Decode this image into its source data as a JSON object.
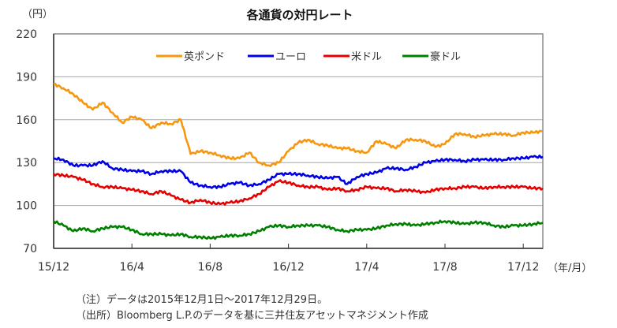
{
  "chart_data": {
    "type": "line",
    "title": "各通貨の対円レート",
    "ylabel": "（円）",
    "xlabel": "（年/月）",
    "ylim": [
      70,
      220
    ],
    "yticks": [
      70,
      100,
      130,
      160,
      190,
      220
    ],
    "x_unit": "months since 2015/12/01",
    "xlim": [
      0,
      25
    ],
    "xticks": [
      {
        "x": 0,
        "label": "15/12"
      },
      {
        "x": 4,
        "label": "16/4"
      },
      {
        "x": 8,
        "label": "16/8"
      },
      {
        "x": 12,
        "label": "16/12"
      },
      {
        "x": 16,
        "label": "17/4"
      },
      {
        "x": 20,
        "label": "17/8"
      },
      {
        "x": 24,
        "label": "17/12"
      }
    ],
    "grid": true,
    "legend": "top-center",
    "x": [
      0,
      0.5,
      1,
      1.5,
      2,
      2.5,
      3,
      3.5,
      4,
      4.5,
      5,
      5.5,
      6,
      6.5,
      7,
      7.5,
      8,
      8.5,
      9,
      9.5,
      10,
      10.5,
      11,
      11.5,
      12,
      12.5,
      13,
      13.5,
      14,
      14.5,
      15,
      15.5,
      16,
      16.5,
      17,
      17.5,
      18,
      18.5,
      19,
      19.5,
      20,
      20.5,
      21,
      21.5,
      22,
      22.5,
      23,
      23.5,
      24,
      24.5,
      25
    ],
    "series": [
      {
        "name": "英ポンド",
        "color": "#f7960f",
        "values": [
          185,
          182,
          178,
          172,
          167,
          172,
          165,
          158,
          162,
          160,
          154,
          158,
          157,
          160,
          136,
          138,
          137,
          135,
          133,
          133,
          137,
          130,
          128,
          130,
          138,
          144,
          146,
          143,
          142,
          140,
          140,
          138,
          137,
          145,
          143,
          140,
          146,
          146,
          145,
          141,
          143,
          150,
          150,
          148,
          149,
          150,
          150,
          149,
          151,
          151,
          152
        ]
      },
      {
        "name": "ユーロ",
        "color": "#0000e6",
        "values": [
          133,
          132,
          128,
          128,
          128,
          131,
          126,
          125,
          124,
          124,
          122,
          124,
          124,
          124,
          116,
          114,
          113,
          113,
          115,
          116,
          114,
          115,
          118,
          122,
          122,
          122,
          121,
          120,
          119,
          120,
          115,
          120,
          122,
          123,
          126,
          126,
          125,
          127,
          130,
          131,
          132,
          132,
          131,
          132,
          132,
          132,
          132,
          133,
          133,
          134,
          134
        ]
      },
      {
        "name": "米ドル",
        "color": "#e60000",
        "values": [
          122,
          121,
          120,
          118,
          115,
          113,
          113,
          112,
          111,
          110,
          108,
          110,
          107,
          104,
          102,
          104,
          102,
          101,
          102,
          103,
          105,
          108,
          113,
          117,
          116,
          114,
          113,
          113,
          111,
          112,
          110,
          111,
          113,
          112,
          112,
          110,
          111,
          110,
          109,
          111,
          112,
          112,
          113,
          113,
          112,
          113,
          113,
          113,
          113,
          112,
          112
        ]
      },
      {
        "name": "豪ドル",
        "color": "#008000",
        "values": [
          89,
          86,
          82,
          84,
          82,
          84,
          85,
          85,
          83,
          80,
          80,
          80,
          79,
          80,
          78,
          78,
          77,
          78,
          79,
          79,
          80,
          82,
          85,
          86,
          85,
          86,
          86,
          86,
          85,
          83,
          82,
          83,
          83,
          84,
          86,
          87,
          87,
          86,
          87,
          88,
          89,
          88,
          87,
          88,
          88,
          86,
          85,
          86,
          86,
          87,
          88
        ]
      }
    ]
  },
  "notes": [
    "（注）データは2015年12月1日～2017年12月29日。",
    "（出所）Bloomberg L.P.のデータを基に三井住友アセットマネジメント作成"
  ]
}
